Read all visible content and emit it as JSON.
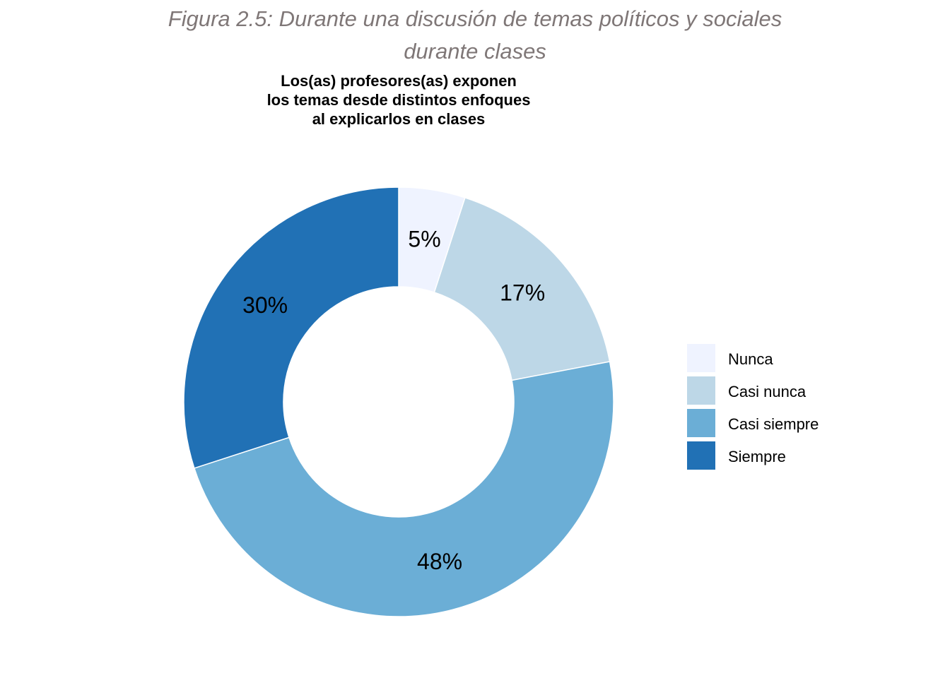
{
  "figure_title": {
    "line1": "Figura 2.5: Durante una discusión de temas políticos y sociales",
    "line2": "durante clases"
  },
  "chart_data": {
    "type": "pie",
    "variant": "donut",
    "title_lines": [
      "Los(as) profesores(as) exponen",
      "los temas desde distintos enfoques",
      "al explicarlos en clases"
    ],
    "categories": [
      "Nunca",
      "Casi nunca",
      "Casi siempre",
      "Siempre"
    ],
    "values": [
      5,
      17,
      48,
      30
    ],
    "labels": [
      "5%",
      "17%",
      "48%",
      "30%"
    ],
    "colors": [
      "#eff3ff",
      "#bdd7e7",
      "#6baed6",
      "#2171b5"
    ],
    "legend_placement": "right",
    "start_angle": "top, clockwise"
  }
}
